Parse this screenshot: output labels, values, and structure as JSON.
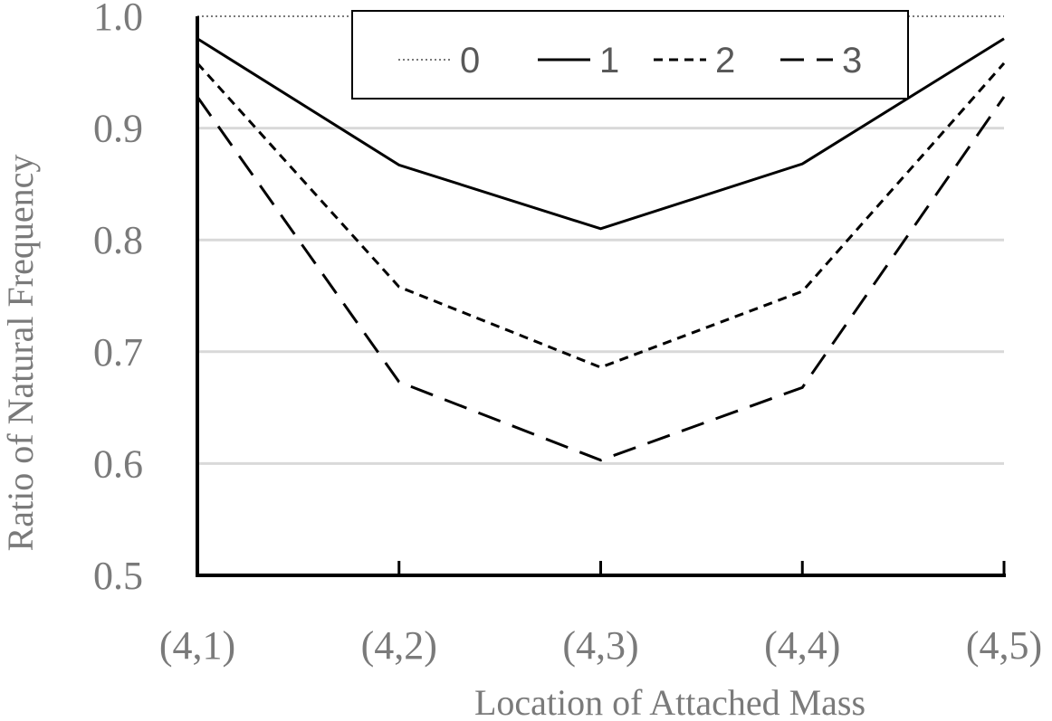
{
  "chart_data": {
    "type": "line",
    "title": "",
    "xlabel": "Location of Attached Mass",
    "ylabel": "Ratio of Natural Frequency",
    "categories": [
      "(4,1)",
      "(4,2)",
      "(4,3)",
      "(4,4)",
      "(4,5)"
    ],
    "ylim": [
      0.5,
      1.0
    ],
    "yticks": [
      "0.5",
      "0.6",
      "0.7",
      "0.8",
      "0.9",
      "1.0"
    ],
    "grid": "horizontal",
    "legend_position": "top-center",
    "series": [
      {
        "name": "0",
        "style": "dotted",
        "color": "#7a7a7a",
        "values": [
          1.0,
          1.0,
          1.0,
          1.0,
          1.0
        ]
      },
      {
        "name": "1",
        "style": "solid",
        "color": "#000000",
        "values": [
          0.98,
          0.867,
          0.81,
          0.868,
          0.98
        ]
      },
      {
        "name": "2",
        "style": "short-dash",
        "color": "#000000",
        "values": [
          0.958,
          0.758,
          0.686,
          0.754,
          0.958
        ]
      },
      {
        "name": "3",
        "style": "long-dash",
        "color": "#000000",
        "values": [
          0.928,
          0.673,
          0.603,
          0.668,
          0.928
        ]
      }
    ]
  }
}
